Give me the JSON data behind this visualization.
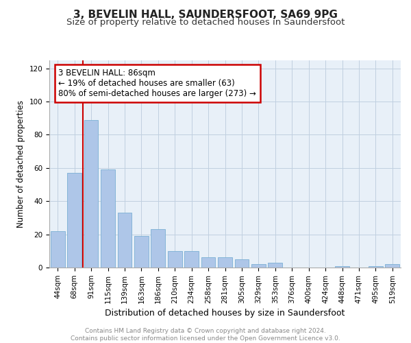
{
  "title1": "3, BEVELIN HALL, SAUNDERSFOOT, SA69 9PG",
  "title2": "Size of property relative to detached houses in Saundersfoot",
  "xlabel": "Distribution of detached houses by size in Saundersfoot",
  "ylabel": "Number of detached properties",
  "categories": [
    "44sqm",
    "68sqm",
    "91sqm",
    "115sqm",
    "139sqm",
    "163sqm",
    "186sqm",
    "210sqm",
    "234sqm",
    "258sqm",
    "281sqm",
    "305sqm",
    "329sqm",
    "353sqm",
    "376sqm",
    "400sqm",
    "424sqm",
    "448sqm",
    "471sqm",
    "495sqm",
    "519sqm"
  ],
  "values": [
    22,
    57,
    89,
    59,
    33,
    19,
    23,
    10,
    10,
    6,
    6,
    5,
    2,
    3,
    0,
    0,
    0,
    1,
    0,
    1,
    2
  ],
  "bar_color": "#aec6e8",
  "bar_edge_color": "#7aafd4",
  "vline_color": "#cc0000",
  "vline_x": 1.5,
  "annotation_text": "3 BEVELIN HALL: 86sqm\n← 19% of detached houses are smaller (63)\n80% of semi-detached houses are larger (273) →",
  "annotation_box_color": "#ffffff",
  "annotation_box_edge_color": "#cc0000",
  "ylim": [
    0,
    125
  ],
  "yticks": [
    0,
    20,
    40,
    60,
    80,
    100,
    120
  ],
  "grid_color": "#c0cfe0",
  "background_color": "#e8f0f8",
  "footer_text": "Contains HM Land Registry data © Crown copyright and database right 2024.\nContains public sector information licensed under the Open Government Licence v3.0.",
  "title1_fontsize": 11,
  "title2_fontsize": 9.5,
  "xlabel_fontsize": 9,
  "ylabel_fontsize": 8.5,
  "tick_fontsize": 7.5,
  "annotation_fontsize": 8.5,
  "footer_fontsize": 6.5
}
